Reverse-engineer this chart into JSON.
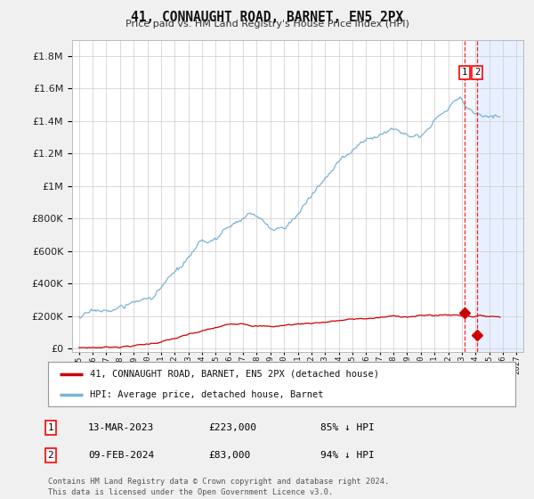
{
  "title": "41, CONNAUGHT ROAD, BARNET, EN5 2PX",
  "subtitle": "Price paid vs. HM Land Registry's House Price Index (HPI)",
  "legend_line1": "41, CONNAUGHT ROAD, BARNET, EN5 2PX (detached house)",
  "legend_line2": "HPI: Average price, detached house, Barnet",
  "table_rows": [
    {
      "num": "1",
      "date": "13-MAR-2023",
      "price": "£223,000",
      "pct": "85% ↓ HPI"
    },
    {
      "num": "2",
      "date": "09-FEB-2024",
      "price": "£83,000",
      "pct": "94% ↓ HPI"
    }
  ],
  "footer": "Contains HM Land Registry data © Crown copyright and database right 2024.\nThis data is licensed under the Open Government Licence v3.0.",
  "hpi_color": "#7ab3d4",
  "price_color": "#cc0000",
  "background_color": "#f0f0f0",
  "plot_bg_color": "#ffffff",
  "grid_color": "#cccccc",
  "xlim_start": 1994.5,
  "xlim_end": 2027.5,
  "ylim_min": -20000,
  "ylim_max": 1900000,
  "marker1_x": 2023.19,
  "marker1_y_price": 223000,
  "marker2_x": 2024.11,
  "marker2_y_price": 83000,
  "vline1_x": 2023.19,
  "vline2_x": 2024.11,
  "hpi_seed": 17,
  "price_seed": 7
}
